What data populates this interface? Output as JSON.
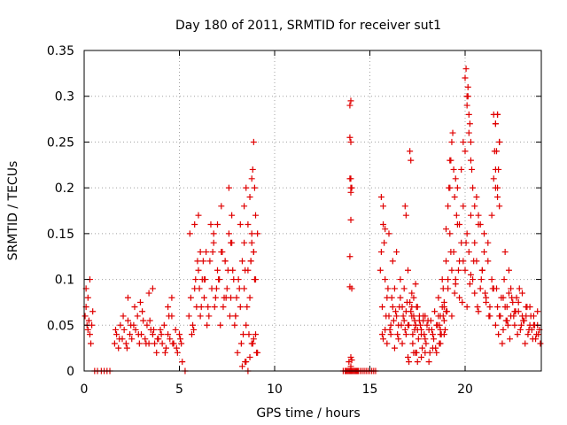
{
  "chart_data": {
    "type": "scatter",
    "title": "Day 180 of 2011, SRMTID for receiver sut1",
    "xlabel": "GPS time / hours",
    "ylabel": "SRMTID / TECUs",
    "xlim": [
      0,
      24
    ],
    "ylim": [
      0,
      0.35
    ],
    "xticks": [
      0,
      5,
      10,
      15,
      20
    ],
    "xtick_labels": [
      "0",
      "5",
      "10",
      "15",
      "20"
    ],
    "yticks": [
      0,
      0.05,
      0.1,
      0.15,
      0.2,
      0.25,
      0.3,
      0.35
    ],
    "ytick_labels": [
      "0",
      "0.05",
      "0.1",
      "0.15",
      "0.2",
      "0.25",
      "0.3",
      "0.35"
    ],
    "grid": true,
    "marker": "+",
    "color": "#e00000",
    "series": [
      {
        "name": "SRMTID",
        "x": [
          0.05,
          0.1,
          0.15,
          0.2,
          0.25,
          0.3,
          0.35,
          0.4,
          0.45,
          0.1,
          0.2,
          0.3,
          0.55,
          0.7,
          0.9,
          1.05,
          1.2,
          1.35,
          1.6,
          1.7,
          1.8,
          1.9,
          2.0,
          2.1,
          2.2,
          2.3,
          2.4,
          2.5,
          2.6,
          2.7,
          2.8,
          2.9,
          3.0,
          3.1,
          3.2,
          3.3,
          3.4,
          3.5,
          3.6,
          3.7,
          1.65,
          1.85,
          2.05,
          2.25,
          2.45,
          2.65,
          2.85,
          3.05,
          3.25,
          3.45,
          3.65,
          3.85,
          4.05,
          4.25,
          4.45,
          4.65,
          4.85,
          5.05,
          3.8,
          3.9,
          4.0,
          4.1,
          4.2,
          4.3,
          4.4,
          4.5,
          4.6,
          4.7,
          4.8,
          4.9,
          5.0,
          5.1,
          5.15,
          5.3,
          2.3,
          2.95,
          3.4,
          3.6,
          4.4,
          4.6,
          5.5,
          5.6,
          5.7,
          5.8,
          5.9,
          6.0,
          6.1,
          6.2,
          6.3,
          6.4,
          6.5,
          6.6,
          6.7,
          6.8,
          6.9,
          7.0,
          7.1,
          7.2,
          7.3,
          7.4,
          7.5,
          7.6,
          7.7,
          7.8,
          5.55,
          5.75,
          5.95,
          6.15,
          6.35,
          6.55,
          6.75,
          6.95,
          7.15,
          7.35,
          7.55,
          7.75,
          7.95,
          5.65,
          5.85,
          6.05,
          6.25,
          6.45,
          6.65,
          6.85,
          7.05,
          7.25,
          7.45,
          7.65,
          7.85,
          5.8,
          6.0,
          6.1,
          6.3,
          6.8,
          7.0,
          7.2,
          7.4,
          7.6,
          7.7,
          7.75,
          7.9,
          8.0,
          8.1,
          8.2,
          8.3,
          8.4,
          8.5,
          8.6,
          8.7,
          8.8,
          8.9,
          9.0,
          9.1,
          7.95,
          8.15,
          8.35,
          8.55,
          8.75,
          8.95,
          8.05,
          8.25,
          8.45,
          8.65,
          8.85,
          9.05,
          8.4,
          8.5,
          8.6,
          8.7,
          8.8,
          8.85,
          8.9,
          8.95,
          9.0,
          8.8,
          8.9,
          8.75,
          8.2,
          8.4,
          8.45,
          8.3,
          8.5,
          8.7,
          8.9,
          9.0,
          9.1,
          8.8,
          8.6,
          13.6,
          13.7,
          13.75,
          13.8,
          13.85,
          13.9,
          13.95,
          14.0,
          14.05,
          14.1,
          14.15,
          14.2,
          14.25,
          14.3,
          14.35,
          14.4,
          14.5,
          14.6,
          14.7,
          14.8,
          14.9,
          15.0,
          15.1,
          15.2,
          15.3,
          13.95,
          14.0,
          13.95,
          14.0,
          13.95,
          14.05,
          14.0,
          14.0,
          13.95,
          14.05,
          13.95,
          14.0,
          13.9,
          14.0,
          14.05,
          14.0,
          14.0,
          15.6,
          15.7,
          15.8,
          15.9,
          16.0,
          16.1,
          16.2,
          16.3,
          16.4,
          16.5,
          16.6,
          16.7,
          16.8,
          16.9,
          17.0,
          17.1,
          17.2,
          17.3,
          17.4,
          17.5,
          17.6,
          17.7,
          17.8,
          17.9,
          15.55,
          15.65,
          15.75,
          15.85,
          15.95,
          16.05,
          16.15,
          16.25,
          16.35,
          16.45,
          16.55,
          16.65,
          16.75,
          16.85,
          16.95,
          17.05,
          17.15,
          17.25,
          17.35,
          17.45,
          15.6,
          15.7,
          15.8,
          16.0,
          16.2,
          16.4,
          16.6,
          16.8,
          17.0,
          17.2,
          17.4,
          17.1,
          17.15,
          16.85,
          16.9,
          15.65,
          15.7,
          15.8,
          15.9,
          16.1,
          16.3,
          16.5,
          16.7,
          16.9,
          17.3,
          17.4,
          17.0,
          17.05,
          17.2,
          17.3,
          17.4,
          17.5,
          17.6,
          17.7,
          17.8,
          17.9,
          18.0,
          18.1,
          18.2,
          18.3,
          18.4,
          18.5,
          18.6,
          18.7,
          18.8,
          18.9,
          19.0,
          17.25,
          17.35,
          17.45,
          17.55,
          17.65,
          17.75,
          17.85,
          17.95,
          18.05,
          18.15,
          18.25,
          18.35,
          18.45,
          18.55,
          18.65,
          18.75,
          18.85,
          18.95,
          17.5,
          17.7,
          17.9,
          18.1,
          18.3,
          18.5,
          18.7,
          18.9,
          18.6,
          18.7,
          18.8,
          18.9,
          19.0,
          19.1,
          19.2,
          19.3,
          19.4,
          19.5,
          19.6,
          19.7,
          19.8,
          19.9,
          20.0,
          20.1,
          20.2,
          20.3,
          20.4,
          20.5,
          20.6,
          20.7,
          20.8,
          20.9,
          21.0,
          21.1,
          21.2,
          21.3,
          21.4,
          21.5,
          18.65,
          18.85,
          19.05,
          19.25,
          19.45,
          19.65,
          19.85,
          20.05,
          20.25,
          20.45,
          20.65,
          20.85,
          21.05,
          21.25,
          21.45,
          18.7,
          18.9,
          19.1,
          19.3,
          19.5,
          19.7,
          19.9,
          20.1,
          20.3,
          20.5,
          20.7,
          20.9,
          21.1,
          21.3,
          19.2,
          19.25,
          19.3,
          19.35,
          19.4,
          19.45,
          19.5,
          19.55,
          19.6,
          19.7,
          19.8,
          19.9,
          20.0,
          20.1,
          20.15,
          20.2,
          20.25,
          20.3,
          20.35,
          20.4,
          20.5,
          20.6,
          20.7,
          20.8,
          21.0,
          21.2,
          21.4,
          21.5,
          21.6,
          21.7,
          21.8,
          19.0,
          19.1,
          19.15,
          19.2,
          20.0,
          20.05,
          20.1,
          20.15,
          20.2,
          20.3,
          21.5,
          21.55,
          21.6,
          21.7,
          21.6,
          21.7,
          21.8,
          21.9,
          22.0,
          22.1,
          22.2,
          22.3,
          22.4,
          22.5,
          22.6,
          22.7,
          22.8,
          22.9,
          23.0,
          23.1,
          23.2,
          23.3,
          23.4,
          23.5,
          23.6,
          23.7,
          23.8,
          23.9,
          21.65,
          21.85,
          22.05,
          22.25,
          22.45,
          22.65,
          22.85,
          23.05,
          23.25,
          23.45,
          23.65,
          23.85,
          21.75,
          21.95,
          22.15,
          22.35,
          22.55,
          22.75,
          22.95,
          23.15,
          23.35,
          23.55,
          23.75,
          23.95,
          22.0,
          22.2,
          22.4,
          22.6,
          22.8,
          23.0,
          23.2,
          23.4,
          23.6,
          23.8,
          21.6,
          21.7,
          21.8,
          21.65,
          21.75,
          21.6,
          21.7,
          21.8,
          22.1,
          22.3
        ],
        "y": [
          0.06,
          0.07,
          0.05,
          0.045,
          0.055,
          0.04,
          0.03,
          0.05,
          0.065,
          0.09,
          0.08,
          0.1,
          0,
          0,
          0,
          0,
          0,
          0,
          0.03,
          0.04,
          0.025,
          0.05,
          0.035,
          0.045,
          0.03,
          0.055,
          0.04,
          0.035,
          0.05,
          0.045,
          0.06,
          0.03,
          0.04,
          0.055,
          0.035,
          0.05,
          0.03,
          0.045,
          0.04,
          0.03,
          0.045,
          0.035,
          0.06,
          0.025,
          0.05,
          0.07,
          0.04,
          0.065,
          0.03,
          0.055,
          0.045,
          0.035,
          0.04,
          0.02,
          0.06,
          0.03,
          0.025,
          0.035,
          0.02,
          0.035,
          0.045,
          0.03,
          0.05,
          0.025,
          0.04,
          0.035,
          0.06,
          0.03,
          0.045,
          0.02,
          0.04,
          0.03,
          0.01,
          0,
          0.08,
          0.075,
          0.085,
          0.09,
          0.07,
          0.08,
          0.06,
          0.08,
          0.05,
          0.09,
          0.07,
          0.11,
          0.06,
          0.1,
          0.08,
          0.13,
          0.07,
          0.12,
          0.09,
          0.14,
          0.08,
          0.11,
          0.1,
          0.13,
          0.07,
          0.12,
          0.09,
          0.15,
          0.08,
          0.11,
          0.15,
          0.045,
          0.12,
          0.07,
          0.1,
          0.06,
          0.13,
          0.09,
          0.05,
          0.08,
          0.11,
          0.14,
          0.06,
          0.04,
          0.1,
          0.09,
          0.12,
          0.05,
          0.16,
          0.07,
          0.1,
          0.13,
          0.08,
          0.06,
          0.1,
          0.16,
          0.17,
          0.13,
          0.1,
          0.15,
          0.16,
          0.18,
          0.12,
          0.2,
          0.14,
          0.17,
          0.05,
          0.08,
          0.1,
          0.07,
          0.12,
          0.09,
          0.05,
          0.11,
          0.08,
          0.14,
          0.13,
          0.1,
          0.15,
          0.06,
          0.09,
          0.04,
          0.07,
          0.12,
          0.1,
          0.02,
          0.03,
          0.01,
          0.04,
          0.03,
          0.02,
          0.18,
          0.2,
          0.16,
          0.19,
          0.21,
          0.22,
          0.25,
          0.2,
          0.17,
          0.15,
          0.13,
          0.12,
          0.16,
          0.14,
          0.11,
          0.005,
          0.01,
          0.015,
          0.035,
          0.04,
          0.02,
          0.03,
          0.0,
          0,
          0,
          0,
          0,
          0,
          0,
          0,
          0,
          0,
          0,
          0,
          0,
          0,
          0,
          0,
          0,
          0,
          0,
          0,
          0,
          0,
          0,
          0,
          0,
          0,
          0.29,
          0.295,
          0.255,
          0.25,
          0.21,
          0.2,
          0.195,
          0.165,
          0.125,
          0.09,
          0.092,
          0.015,
          0.01,
          0.005,
          0.012,
          0.21,
          0.2,
          0.13,
          0.16,
          0.1,
          0.08,
          0.06,
          0.05,
          0.07,
          0.09,
          0.06,
          0.05,
          0.08,
          0.07,
          0.055,
          0.065,
          0.05,
          0.075,
          0.06,
          0.08,
          0.05,
          0.07,
          0.06,
          0.045,
          0.055,
          0.06,
          0.11,
          0.07,
          0.14,
          0.06,
          0.09,
          0.045,
          0.08,
          0.055,
          0.065,
          0.04,
          0.07,
          0.05,
          0.06,
          0.045,
          0.075,
          0.05,
          0.065,
          0.04,
          0.055,
          0.07,
          0.19,
          0.18,
          0.155,
          0.15,
          0.12,
          0.13,
          0.1,
          0.09,
          0.11,
          0.085,
          0.095,
          0.24,
          0.23,
          0.18,
          0.17,
          0.04,
          0.035,
          0.045,
          0.03,
          0.04,
          0.025,
          0.035,
          0.03,
          0.04,
          0.02,
          0.02,
          0.015,
          0.01,
          0.07,
          0.06,
          0.05,
          0.045,
          0.055,
          0.04,
          0.06,
          0.035,
          0.05,
          0.045,
          0.055,
          0.04,
          0.065,
          0.05,
          0.06,
          0.045,
          0.07,
          0.055,
          0.065,
          0.03,
          0.045,
          0.02,
          0.035,
          0.05,
          0.025,
          0.04,
          0.03,
          0.055,
          0.02,
          0.045,
          0.035,
          0.025,
          0.05,
          0.03,
          0.04,
          0.06,
          0.045,
          0.01,
          0.015,
          0.02,
          0.01,
          0.025,
          0.02,
          0.03,
          0.04,
          0.08,
          0.06,
          0.1,
          0.07,
          0.12,
          0.09,
          0.15,
          0.11,
          0.13,
          0.1,
          0.16,
          0.12,
          0.14,
          0.18,
          0.11,
          0.15,
          0.13,
          0.17,
          0.1,
          0.14,
          0.12,
          0.16,
          0.09,
          0.11,
          0.13,
          0.08,
          0.12,
          0.07,
          0.1,
          0.09,
          0.05,
          0.09,
          0.065,
          0.13,
          0.085,
          0.11,
          0.075,
          0.14,
          0.095,
          0.12,
          0.07,
          0.1,
          0.085,
          0.06,
          0.09,
          0.04,
          0.075,
          0.1,
          0.06,
          0.095,
          0.08,
          0.12,
          0.07,
          0.105,
          0.085,
          0.065,
          0.11,
          0.075,
          0.06,
          0.2,
          0.23,
          0.25,
          0.26,
          0.22,
          0.19,
          0.21,
          0.17,
          0.2,
          0.16,
          0.22,
          0.25,
          0.24,
          0.3,
          0.31,
          0.28,
          0.27,
          0.25,
          0.22,
          0.2,
          0.18,
          0.19,
          0.17,
          0.16,
          0.15,
          0.14,
          0.17,
          0.21,
          0.27,
          0.28,
          0.25,
          0.155,
          0.18,
          0.2,
          0.23,
          0.32,
          0.33,
          0.29,
          0.3,
          0.26,
          0.23,
          0.28,
          0.24,
          0.22,
          0.2,
          0.05,
          0.07,
          0.06,
          0.08,
          0.045,
          0.07,
          0.055,
          0.085,
          0.06,
          0.075,
          0.05,
          0.08,
          0.065,
          0.045,
          0.06,
          0.055,
          0.07,
          0.04,
          0.05,
          0.045,
          0.06,
          0.035,
          0.05,
          0.045,
          0.09,
          0.06,
          0.1,
          0.05,
          0.08,
          0.065,
          0.09,
          0.055,
          0.07,
          0.06,
          0.05,
          0.04,
          0.04,
          0.03,
          0.055,
          0.035,
          0.06,
          0.04,
          0.05,
          0.03,
          0.045,
          0.035,
          0.04,
          0.03,
          0.08,
          0.07,
          0.09,
          0.065,
          0.075,
          0.085,
          0.06,
          0.07,
          0.05,
          0.065,
          0.27,
          0.28,
          0.25,
          0.24,
          0.22,
          0.2,
          0.19,
          0.18,
          0.13,
          0.11
        ]
      }
    ]
  }
}
